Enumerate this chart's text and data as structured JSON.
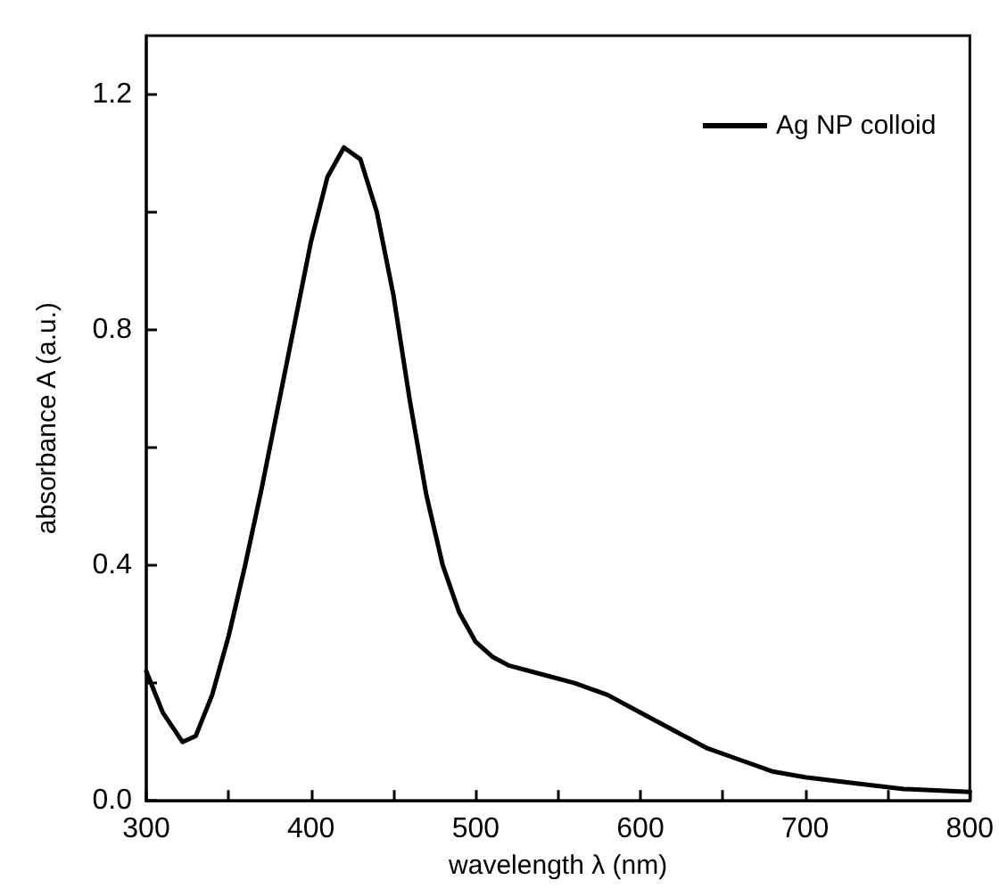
{
  "chart_data": {
    "type": "line",
    "xlabel": "wavelength λ (nm)",
    "ylabel": "absorbance A (a.u.)",
    "legend": "top right",
    "grid": false,
    "marker": "none",
    "line_style": "solid",
    "xlim": [
      300,
      800
    ],
    "ylim": [
      0,
      1.3
    ],
    "xticks": [
      300,
      {
        "value": 350,
        "label": null
      },
      400,
      {
        "value": 450,
        "label": null
      },
      500,
      {
        "value": 550,
        "label": null
      },
      600,
      {
        "value": 650,
        "label": null
      },
      700,
      {
        "value": 750,
        "label": null
      },
      800
    ],
    "yticks": [
      {
        "value": 0,
        "label": "0.0"
      },
      {
        "value": 0.2,
        "label": null
      },
      {
        "value": 0.4,
        "label": "0.4"
      },
      {
        "value": 0.6,
        "label": null
      },
      {
        "value": 0.8,
        "label": "0.8"
      },
      {
        "value": 1.0,
        "label": null
      },
      {
        "value": 1.2,
        "label": "1.2"
      }
    ],
    "x": [
      300,
      310,
      322,
      330,
      340,
      350,
      360,
      370,
      380,
      390,
      400,
      410,
      420,
      430,
      440,
      450,
      460,
      470,
      480,
      490,
      500,
      510,
      520,
      540,
      560,
      580,
      600,
      620,
      640,
      660,
      680,
      700,
      730,
      760,
      800
    ],
    "series": [
      {
        "name": "Ag NP colloid",
        "color": "#000000",
        "values": [
          0.22,
          0.15,
          0.1,
          0.11,
          0.18,
          0.28,
          0.4,
          0.53,
          0.67,
          0.81,
          0.95,
          1.06,
          1.11,
          1.09,
          1.0,
          0.86,
          0.68,
          0.52,
          0.4,
          0.32,
          0.27,
          0.245,
          0.23,
          0.215,
          0.2,
          0.18,
          0.15,
          0.12,
          0.09,
          0.07,
          0.05,
          0.04,
          0.03,
          0.02,
          0.015
        ]
      }
    ]
  }
}
